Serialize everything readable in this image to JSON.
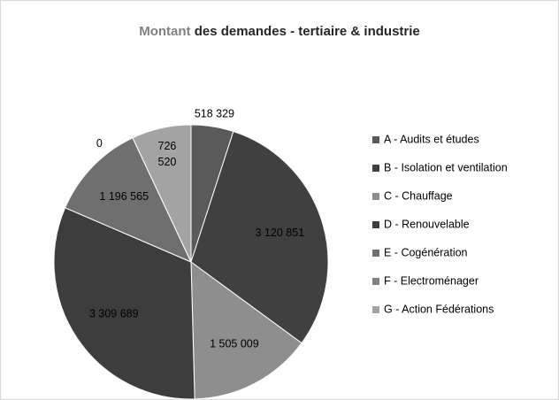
{
  "chart_data": {
    "type": "pie",
    "title": "Montant des demandes - tertiaire & industrie",
    "categories": [
      "A - Audits et études",
      "B - Isolation  et ventilation",
      "C - Chauffage",
      "D - Renouvelable",
      "E - Cogénération",
      "F - Electroménager",
      "G - Action Fédérations"
    ],
    "values": [
      518329,
      3120851,
      1505009,
      3309689,
      1196565,
      0,
      726520
    ],
    "value_labels": [
      "518 329",
      "3 120 851",
      "1 505 009",
      "3 309 689",
      "1 196 565",
      "0",
      "726 520"
    ],
    "colors": [
      "#5a5a5a",
      "#404040",
      "#8e8e8e",
      "#3d3d3d",
      "#6f6f6f",
      "#808080",
      "#a3a3a3"
    ],
    "legend": "right"
  }
}
